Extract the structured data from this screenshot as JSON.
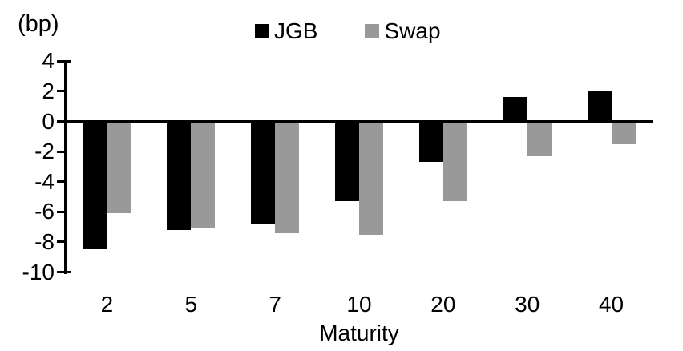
{
  "chart_data": {
    "type": "bar",
    "title": "",
    "unit_label": "(bp)",
    "xlabel": "Maturity",
    "ylabel": "",
    "categories": [
      "2",
      "5",
      "7",
      "10",
      "20",
      "30",
      "40"
    ],
    "series": [
      {
        "name": "JGB",
        "color": "#000000",
        "values": [
          -8.5,
          -7.2,
          -6.8,
          -5.3,
          -2.7,
          1.6,
          2.0
        ]
      },
      {
        "name": "Swap",
        "color": "#999999",
        "values": [
          -6.1,
          -7.1,
          -7.4,
          -7.5,
          -5.3,
          -2.3,
          -1.5
        ]
      }
    ],
    "y_ticks": [
      4,
      2,
      0,
      -2,
      -4,
      -6,
      -8,
      -10
    ],
    "ylim": [
      -10,
      4
    ],
    "grid": false,
    "legend_position": "top-center",
    "background": "#ffffff"
  }
}
